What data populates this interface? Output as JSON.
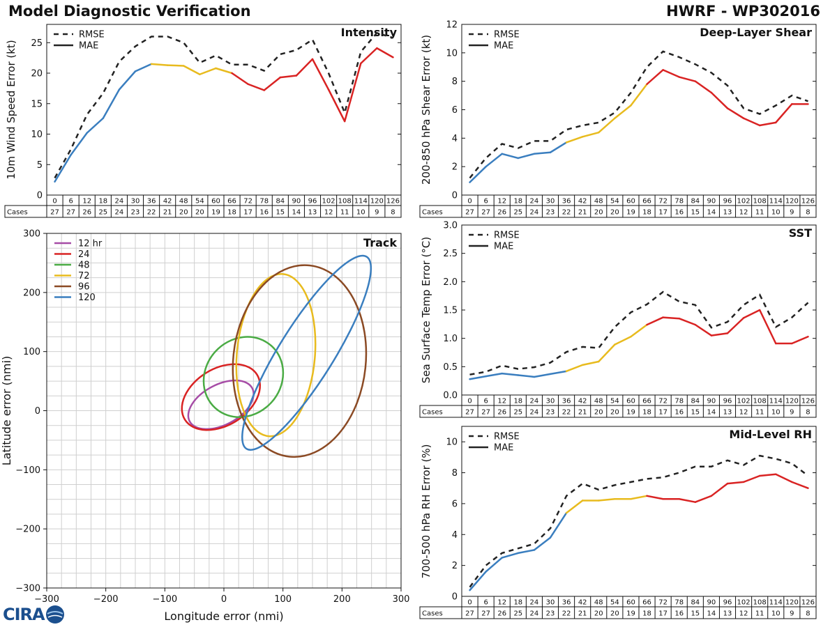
{
  "header": {
    "title": "Model Diagnostic Verification",
    "storm": "HWRF - WP302016"
  },
  "logo": {
    "text": "CIRA"
  },
  "colors": {
    "blue": "#3a7ebf",
    "yellow": "#e8bb1e",
    "red": "#d92323",
    "rmse": "#222222"
  },
  "legend": {
    "rmse": "RMSE",
    "mae": "MAE"
  },
  "table": {
    "cases_label": "Cases",
    "hours": [
      "0",
      "6",
      "12",
      "18",
      "24",
      "30",
      "36",
      "42",
      "48",
      "54",
      "60",
      "66",
      "72",
      "78",
      "84",
      "90",
      "96",
      "102",
      "108",
      "114",
      "120",
      "126"
    ],
    "cases": [
      "27",
      "27",
      "26",
      "25",
      "24",
      "23",
      "22",
      "21",
      "20",
      "20",
      "19",
      "18",
      "17",
      "16",
      "15",
      "14",
      "13",
      "12",
      "11",
      "10",
      "9",
      "8"
    ]
  },
  "chart_data": [
    {
      "id": "intensity",
      "type": "line",
      "title": "Intensity",
      "ylabel": "10m Wind Speed Error (kt)",
      "ylim": [
        0,
        28
      ],
      "yticks": [
        0,
        5,
        10,
        15,
        20,
        25
      ],
      "x": [
        0,
        6,
        12,
        18,
        24,
        30,
        36,
        42,
        48,
        54,
        60,
        66,
        72,
        78,
        84,
        90,
        96,
        102,
        108,
        114,
        120,
        126
      ],
      "series": [
        {
          "name": "RMSE",
          "values": [
            2.8,
            7.5,
            13.2,
            16.7,
            21.9,
            24.4,
            26.0,
            26.0,
            25.0,
            21.7,
            22.9,
            21.4,
            21.4,
            20.4,
            23.1,
            23.8,
            25.5,
            20.0,
            13.5,
            23.5,
            26.6,
            25.8
          ]
        },
        {
          "name": "MAE",
          "values": [
            2.2,
            6.6,
            10.2,
            12.6,
            17.3,
            20.3,
            21.5,
            21.3,
            21.2,
            19.8,
            20.8,
            20.0,
            18.2,
            17.2,
            19.3,
            19.6,
            22.3,
            17.3,
            12.1,
            21.6,
            24.1,
            22.6
          ]
        }
      ]
    },
    {
      "id": "shear",
      "type": "line",
      "title": "Deep-Layer Shear",
      "ylabel": "200-850 hPa Shear Error (kt)",
      "ylim": [
        0,
        12
      ],
      "yticks": [
        0,
        2,
        4,
        6,
        8,
        10,
        12
      ],
      "x": [
        0,
        6,
        12,
        18,
        24,
        30,
        36,
        42,
        48,
        54,
        60,
        66,
        72,
        78,
        84,
        90,
        96,
        102,
        108,
        114,
        120,
        126
      ],
      "series": [
        {
          "name": "RMSE",
          "values": [
            1.2,
            2.6,
            3.6,
            3.3,
            3.8,
            3.8,
            4.6,
            4.9,
            5.1,
            5.8,
            7.2,
            9.0,
            10.1,
            9.7,
            9.2,
            8.6,
            7.7,
            6.1,
            5.7,
            6.3,
            7.0,
            6.6
          ]
        },
        {
          "name": "MAE",
          "values": [
            0.9,
            2.0,
            2.9,
            2.6,
            2.9,
            3.0,
            3.7,
            4.1,
            4.4,
            5.4,
            6.3,
            7.8,
            8.8,
            8.3,
            8.0,
            7.2,
            6.1,
            5.4,
            4.9,
            5.1,
            6.4,
            6.4
          ]
        }
      ]
    },
    {
      "id": "sst",
      "type": "line",
      "title": "SST",
      "ylabel": "Sea Surface Temp Error (°C)",
      "ylim": [
        0,
        3.0
      ],
      "yticks": [
        0.0,
        0.5,
        1.0,
        1.5,
        2.0,
        2.5,
        3.0
      ],
      "x": [
        0,
        6,
        12,
        18,
        24,
        30,
        36,
        42,
        48,
        54,
        60,
        66,
        72,
        78,
        84,
        90,
        96,
        102,
        108,
        114,
        120,
        126
      ],
      "series": [
        {
          "name": "RMSE",
          "values": [
            0.36,
            0.41,
            0.52,
            0.46,
            0.49,
            0.57,
            0.76,
            0.85,
            0.83,
            1.2,
            1.46,
            1.6,
            1.82,
            1.65,
            1.59,
            1.19,
            1.29,
            1.59,
            1.77,
            1.2,
            1.37,
            1.63
          ]
        },
        {
          "name": "MAE",
          "values": [
            0.28,
            0.33,
            0.38,
            0.35,
            0.32,
            0.37,
            0.42,
            0.53,
            0.59,
            0.89,
            1.03,
            1.24,
            1.37,
            1.35,
            1.24,
            1.05,
            1.09,
            1.36,
            1.5,
            0.91,
            0.91,
            1.03
          ]
        }
      ]
    },
    {
      "id": "rh",
      "type": "line",
      "title": "Mid-Level RH",
      "ylabel": "700-500 hPa RH Error (%)",
      "ylim": [
        0,
        11
      ],
      "yticks": [
        0,
        2,
        4,
        6,
        8,
        10
      ],
      "x": [
        0,
        6,
        12,
        18,
        24,
        30,
        36,
        42,
        48,
        54,
        60,
        66,
        72,
        78,
        84,
        90,
        96,
        102,
        108,
        114,
        120,
        126
      ],
      "series": [
        {
          "name": "RMSE",
          "values": [
            0.6,
            2.0,
            2.8,
            3.1,
            3.4,
            4.4,
            6.5,
            7.3,
            6.9,
            7.2,
            7.4,
            7.6,
            7.7,
            8.0,
            8.4,
            8.4,
            8.8,
            8.5,
            9.1,
            8.9,
            8.6,
            7.8
          ]
        },
        {
          "name": "MAE",
          "values": [
            0.4,
            1.6,
            2.5,
            2.8,
            3.0,
            3.8,
            5.4,
            6.2,
            6.2,
            6.3,
            6.3,
            6.5,
            6.3,
            6.3,
            6.1,
            6.5,
            7.3,
            7.4,
            7.8,
            7.9,
            7.4,
            7.0
          ]
        }
      ]
    },
    {
      "id": "track",
      "type": "ellipse",
      "title": "Track",
      "xlabel": "Longitude error (nmi)",
      "ylabel": "Latitude error (nmi)",
      "xlim": [
        -300,
        300
      ],
      "ylim": [
        -300,
        300
      ],
      "xticks": [
        -300,
        -200,
        -100,
        0,
        100,
        200,
        300
      ],
      "yticks": [
        -300,
        -200,
        -100,
        0,
        100,
        200,
        300
      ],
      "tick_labels_x": [
        "−300",
        "−200",
        "−100",
        "0",
        "100",
        "200",
        "300"
      ],
      "tick_labels_y": [
        "−300",
        "−200",
        "−100",
        "0",
        "100",
        "200",
        "300"
      ],
      "grid": true,
      "legend_position": "top-left",
      "ellipses": [
        {
          "label": "12 hr",
          "color": "#a64ca6",
          "cx": -5,
          "cy": 10,
          "a": 60,
          "b": 34,
          "angle": 28
        },
        {
          "label": "24",
          "color": "#d92323",
          "cx": -5,
          "cy": 23,
          "a": 72,
          "b": 48,
          "angle": 32
        },
        {
          "label": "48",
          "color": "#4aab44",
          "cx": 33,
          "cy": 57,
          "a": 71,
          "b": 64,
          "angle": 48
        },
        {
          "label": "72",
          "color": "#e8bb1e",
          "cx": 88,
          "cy": 94,
          "a": 138,
          "b": 66,
          "angle": 85
        },
        {
          "label": "96",
          "color": "#8b4a24",
          "cx": 128,
          "cy": 84,
          "a": 163,
          "b": 112,
          "angle": 84
        },
        {
          "label": "120",
          "color": "#3a7ebf",
          "cx": 140,
          "cy": 98,
          "a": 192,
          "b": 46,
          "angle": 58
        }
      ]
    }
  ]
}
